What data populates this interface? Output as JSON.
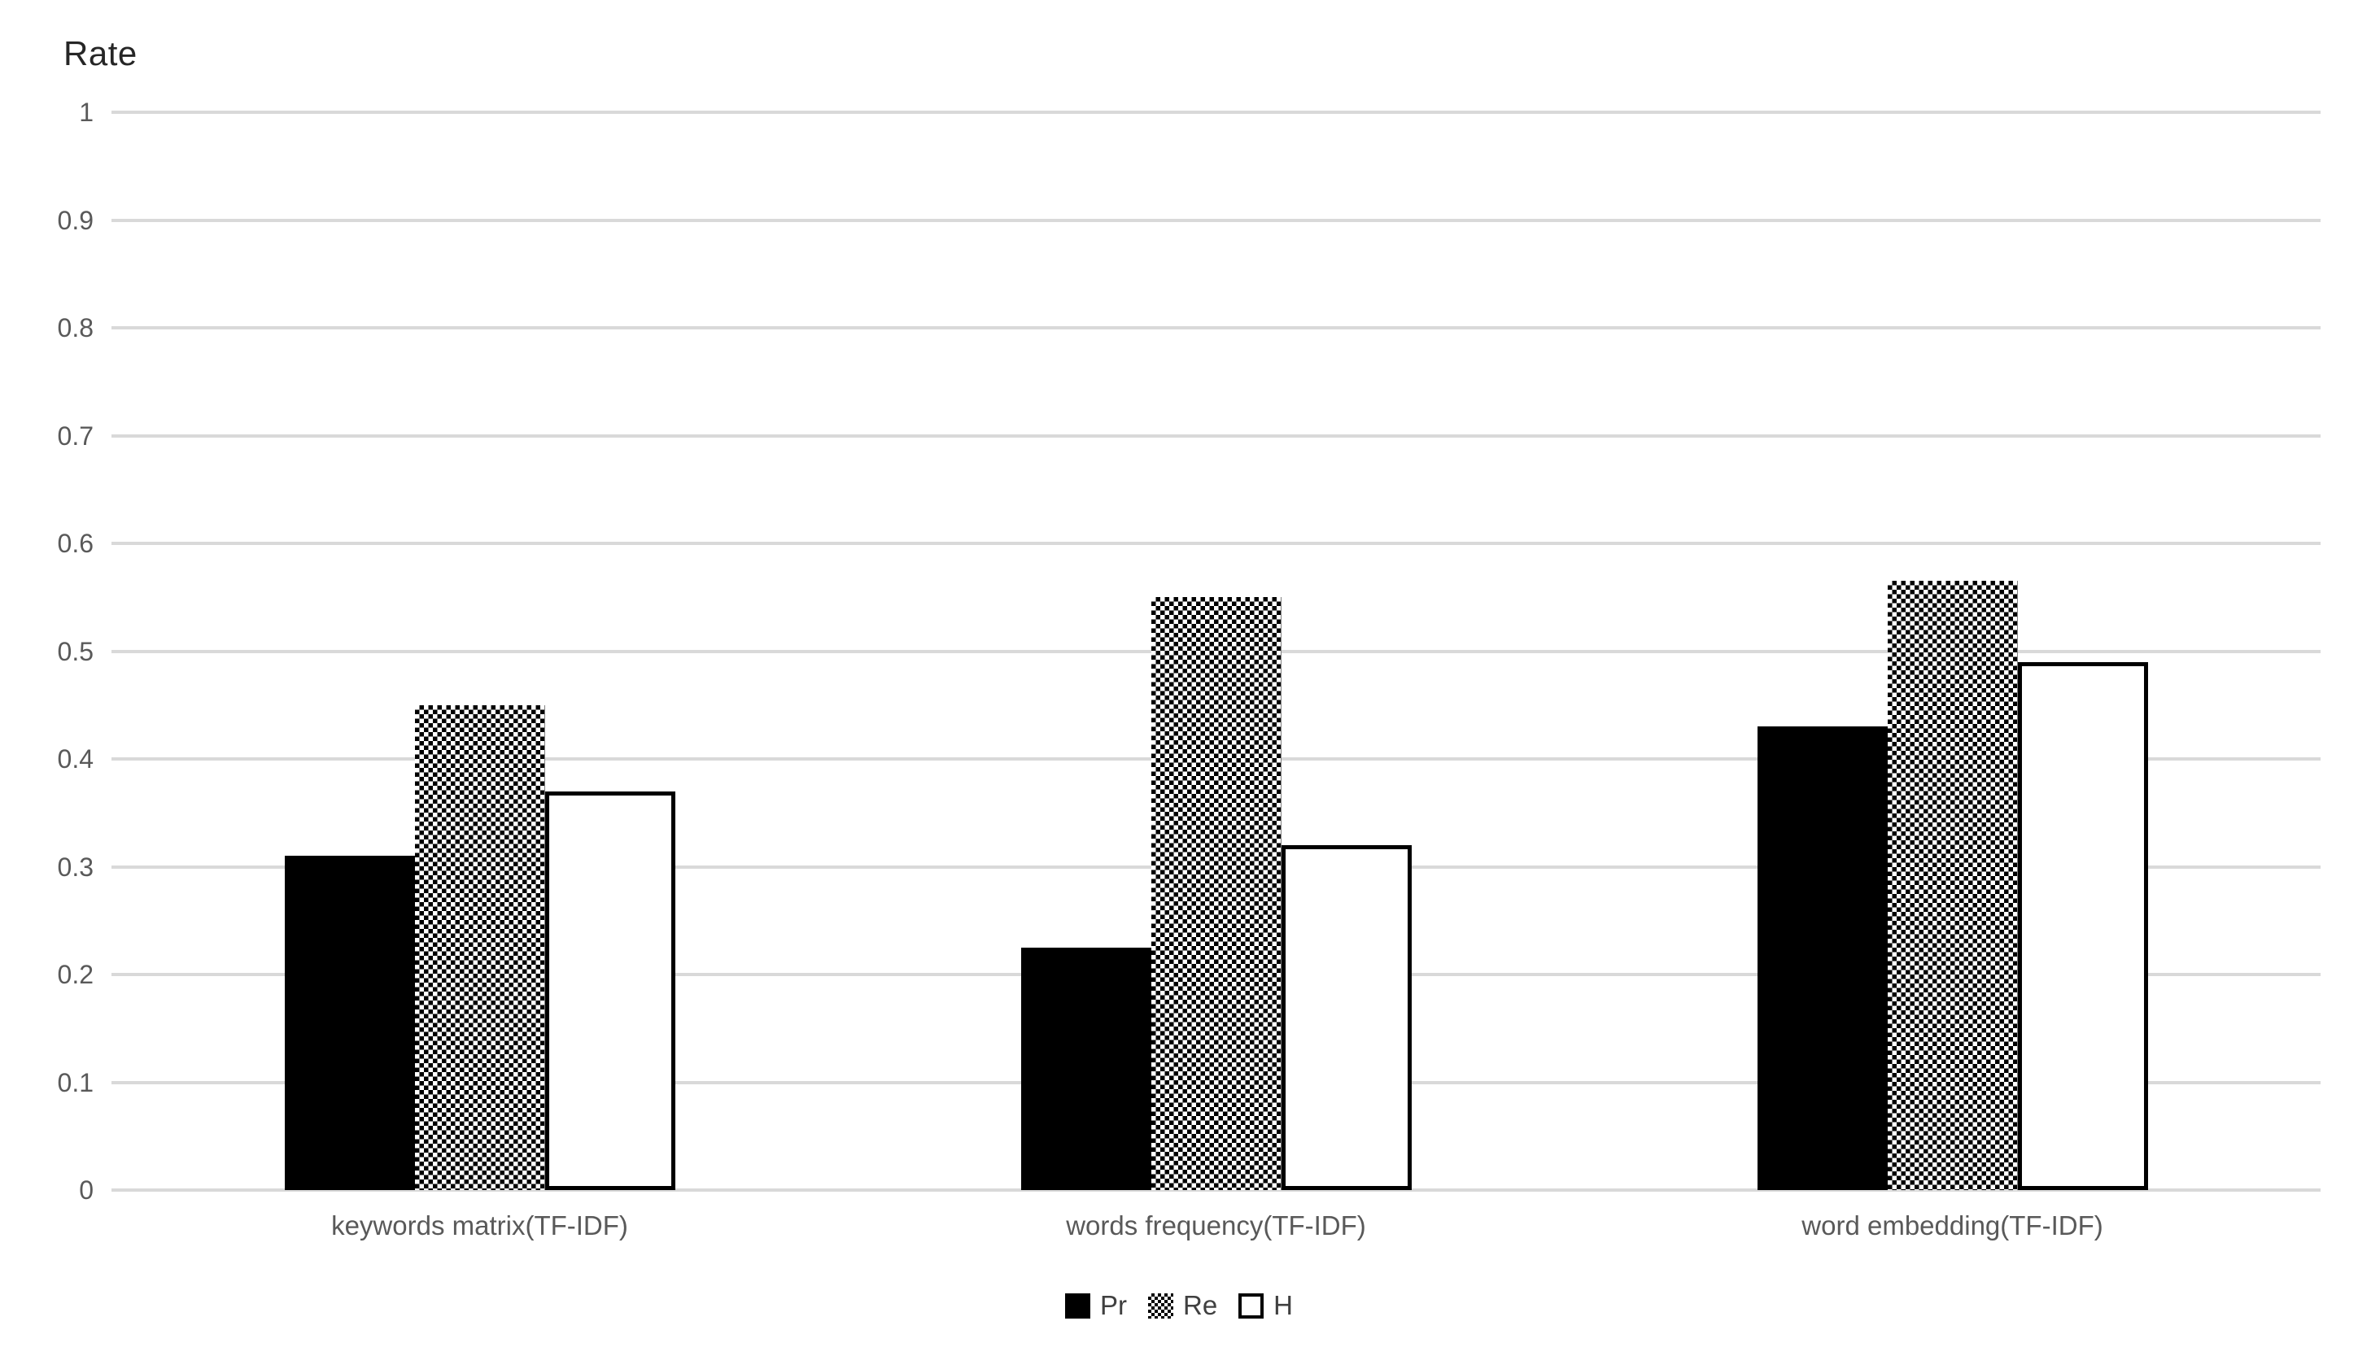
{
  "chart_data": {
    "type": "bar",
    "title": "Rate",
    "ylabel": "Rate",
    "xlabel": "",
    "categories": [
      "keywords matrix(TF-IDF)",
      "words frequency(TF-IDF)",
      "word embedding(TF-IDF)"
    ],
    "series": [
      {
        "name": "Pr",
        "fill": "solid-black",
        "values": [
          0.31,
          0.225,
          0.43
        ]
      },
      {
        "name": "Re",
        "fill": "checker-pattern",
        "values": [
          0.45,
          0.55,
          0.565
        ]
      },
      {
        "name": "H",
        "fill": "white-outlined",
        "values": [
          0.37,
          0.32,
          0.49
        ]
      }
    ],
    "ylim": [
      0,
      1
    ],
    "ytick_step": 0.1,
    "ytick_labels": [
      "0",
      "0.1",
      "0.2",
      "0.3",
      "0.4",
      "0.5",
      "0.6",
      "0.7",
      "0.8",
      "0.9",
      "1"
    ],
    "grid": "horizontal-on",
    "legend_position": "bottom-center"
  },
  "colors": {
    "bar_solid": "#000000",
    "bar_outline": "#000000",
    "bar_white_fill": "#ffffff",
    "gridline": "#d9d9d9",
    "tick_text": "#595959",
    "axis_title_text": "#262626",
    "legend_text": "#404040",
    "background": "#ffffff"
  }
}
